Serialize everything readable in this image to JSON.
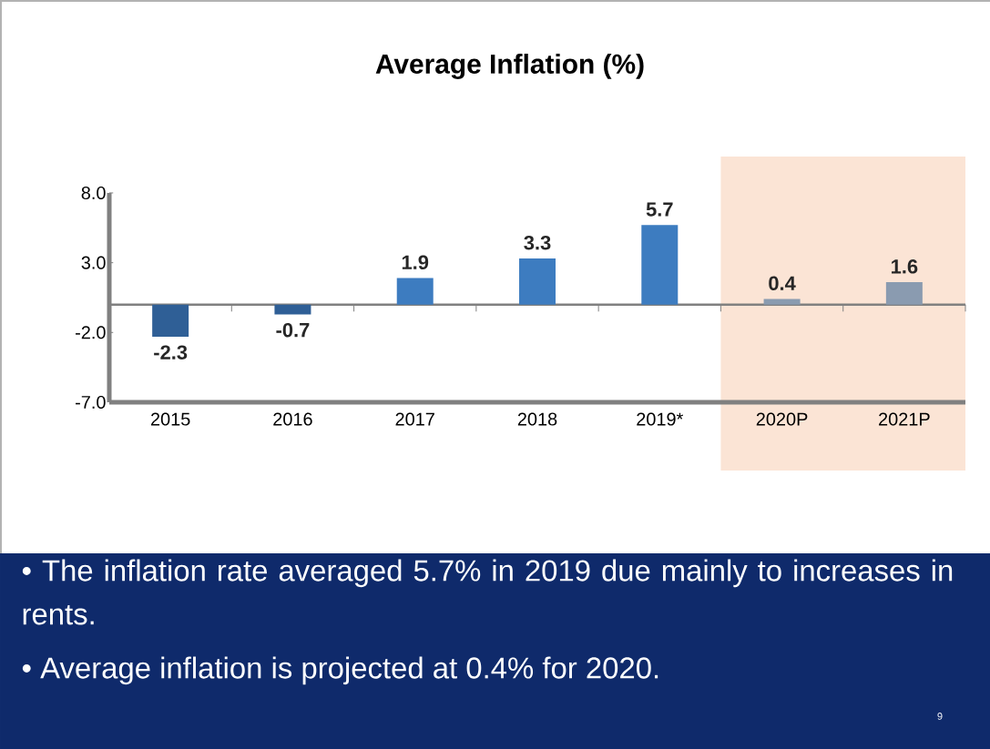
{
  "chart_data": {
    "type": "bar",
    "title": "Average Inflation (%)",
    "categories": [
      "2015",
      "2016",
      "2017",
      "2018",
      "2019*",
      "2020P",
      "2021P"
    ],
    "values": [
      -2.3,
      -0.7,
      1.9,
      3.3,
      5.7,
      0.4,
      1.6
    ],
    "value_labels": [
      "-2.3",
      "-0.7",
      "1.9",
      "3.3",
      "5.7",
      "0.4",
      "1.6"
    ],
    "colors": [
      "#2f5f96",
      "#2f5f96",
      "#3d7cc0",
      "#3d7cc0",
      "#3d7cc0",
      "#8a9bb0",
      "#8a9bb0"
    ],
    "ylim": [
      -7,
      8
    ],
    "yticks": [
      {
        "value": 8,
        "label": "8.0"
      },
      {
        "value": 3,
        "label": "3.0"
      },
      {
        "value": -2,
        "label": "-2.0"
      },
      {
        "value": -7,
        "label": "-7.0"
      }
    ],
    "bands": [
      {
        "axis": "x",
        "from": "2020P",
        "to": "2021P",
        "color": "#fbe4d5"
      }
    ],
    "grid": false,
    "annotations": [
      "• The inflation rate averaged 5.7% in 2019 due mainly to increases in rents.",
      "• Average inflation is projected at 0.4% for 2020.",
      "9"
    ]
  }
}
